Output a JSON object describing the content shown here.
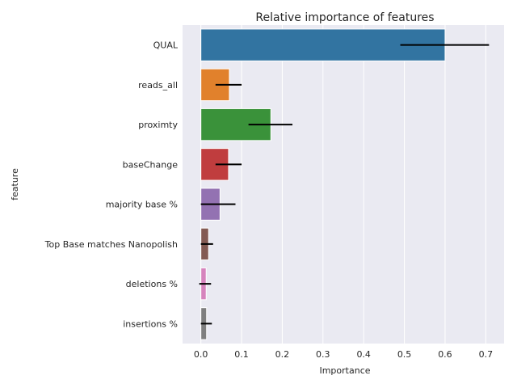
{
  "chart_data": {
    "type": "bar",
    "orientation": "horizontal",
    "title": "Relative importance of features",
    "xlabel": "Importance",
    "ylabel": "feature",
    "xlim": [
      -0.045,
      0.745
    ],
    "xticks": [
      "0.0",
      "0.1",
      "0.2",
      "0.3",
      "0.4",
      "0.5",
      "0.6",
      "0.7"
    ],
    "grid": true,
    "categories": [
      "QUAL",
      "reads_all",
      "proximty",
      "baseChange",
      "majority base %",
      "Top Base matches Nanopolish",
      "deletions %",
      "insertions %"
    ],
    "values": [
      0.6,
      0.07,
      0.172,
      0.068,
      0.047,
      0.019,
      0.013,
      0.014
    ],
    "error": [
      [
        0.49,
        0.708
      ],
      [
        0.036,
        0.1
      ],
      [
        0.117,
        0.225
      ],
      [
        0.036,
        0.1
      ],
      [
        0.0,
        0.085
      ],
      [
        0.0,
        0.03
      ],
      [
        -0.004,
        0.025
      ],
      [
        0.0,
        0.027
      ]
    ],
    "colors": [
      "#3274a1",
      "#e1812c",
      "#3a923a",
      "#c03d3e",
      "#9372b2",
      "#845b53",
      "#d684bd",
      "#7f7f7f"
    ]
  }
}
